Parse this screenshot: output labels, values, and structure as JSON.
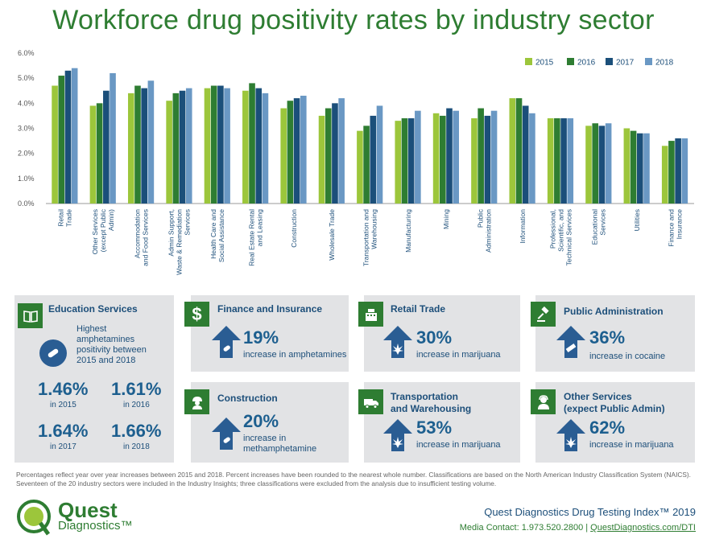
{
  "title": "Workforce drug positivity rates by industry sector",
  "chart_data": {
    "type": "bar",
    "categories": [
      "Retail\nTrade",
      "Other Services\n(except Public\nAdmin)",
      "Accommodation\nand Food Services",
      "Admin Support,\nWaste & Remediation\nServices",
      "Health Care and\nSocial Assistance",
      "Real Estate Rental\nand Leasing",
      "Construction",
      "Wholesale Trade",
      "Transportation and\nWarehousing",
      "Manufacturing",
      "Mining",
      "Public\nAdministration",
      "Information",
      "Professional,\nScientific, and\nTechnical Services",
      "Educational\nServices",
      "Utilities",
      "Finance and\nInsurance"
    ],
    "series": [
      {
        "name": "2015",
        "color": "#9cc63b",
        "values": [
          4.7,
          3.9,
          4.4,
          4.1,
          4.6,
          4.5,
          3.8,
          3.5,
          2.9,
          3.3,
          3.6,
          3.4,
          4.2,
          3.4,
          3.1,
          3.0,
          2.3
        ]
      },
      {
        "name": "2016",
        "color": "#2e7d32",
        "values": [
          5.1,
          4.0,
          4.7,
          4.4,
          4.7,
          4.8,
          4.1,
          3.8,
          3.1,
          3.4,
          3.5,
          3.8,
          4.2,
          3.4,
          3.2,
          2.9,
          2.5
        ]
      },
      {
        "name": "2017",
        "color": "#1b4f7a",
        "values": [
          5.3,
          4.5,
          4.6,
          4.5,
          4.7,
          4.6,
          4.2,
          4.0,
          3.5,
          3.4,
          3.8,
          3.5,
          3.9,
          3.4,
          3.1,
          2.8,
          2.6
        ]
      },
      {
        "name": "2018",
        "color": "#6a98c4",
        "values": [
          5.4,
          5.2,
          4.9,
          4.6,
          4.6,
          4.4,
          4.3,
          4.2,
          3.9,
          3.7,
          3.7,
          3.7,
          3.6,
          3.4,
          3.2,
          2.8,
          2.6
        ]
      }
    ],
    "yticks": [
      "0.0%",
      "1.0%",
      "2.0%",
      "3.0%",
      "4.0%",
      "5.0%",
      "6.0%"
    ],
    "ylim": [
      0,
      6
    ],
    "grid": false,
    "legend_position": "top-right"
  },
  "education": {
    "title": "Education Services",
    "note": "Highest amphetamines positivity between 2015 and 2018",
    "stats": [
      {
        "value": "1.46%",
        "year": "in 2015"
      },
      {
        "value": "1.61%",
        "year": "in 2016"
      },
      {
        "value": "1.64%",
        "year": "in 2017"
      },
      {
        "value": "1.66%",
        "year": "in 2018"
      }
    ]
  },
  "finance": {
    "title": "Finance and Insurance",
    "pct": "19%",
    "desc": "increase in amphetamines"
  },
  "construction": {
    "title": "Construction",
    "pct": "20%",
    "desc1": "increase in",
    "desc2": "methamphetamine"
  },
  "retail": {
    "title": "Retail Trade",
    "pct": "30%",
    "desc": "increase in marijuana"
  },
  "transport": {
    "title1": "Transportation",
    "title2": "and Warehousing",
    "pct": "53%",
    "desc": "increase in marijuana"
  },
  "public": {
    "title": "Public Administration",
    "pct": "36%",
    "desc": "increase in cocaine"
  },
  "other": {
    "title1": "Other Services",
    "title2": "(expect Public Admin)",
    "pct": "62%",
    "desc": "increase in marijuana"
  },
  "footnote": "Percentages reflect year over year increases between 2015 and 2018. Percent increases have been rounded to the nearest whole number. Classifications are based on the North American Industry Classification System (NAICS). Seventeen of the 20 industry sectors were included in the Industry Insights; three classifications were excluded from the analysis due to insufficient testing volume.",
  "brand": {
    "name": "Quest",
    "sub": "Diagnostics™"
  },
  "index_title": "Quest Diagnostics Drug Testing Index™ 2019",
  "contact": {
    "label": "Media Contact: 1.973.520.2800 |",
    "link": "QuestDiagnostics.com/DTI"
  },
  "colors": {
    "green": "#2e7d32",
    "lime": "#9cc63b",
    "navy": "#1b4f7a",
    "lightblue": "#6a98c4",
    "card": "#e2e3e5"
  }
}
